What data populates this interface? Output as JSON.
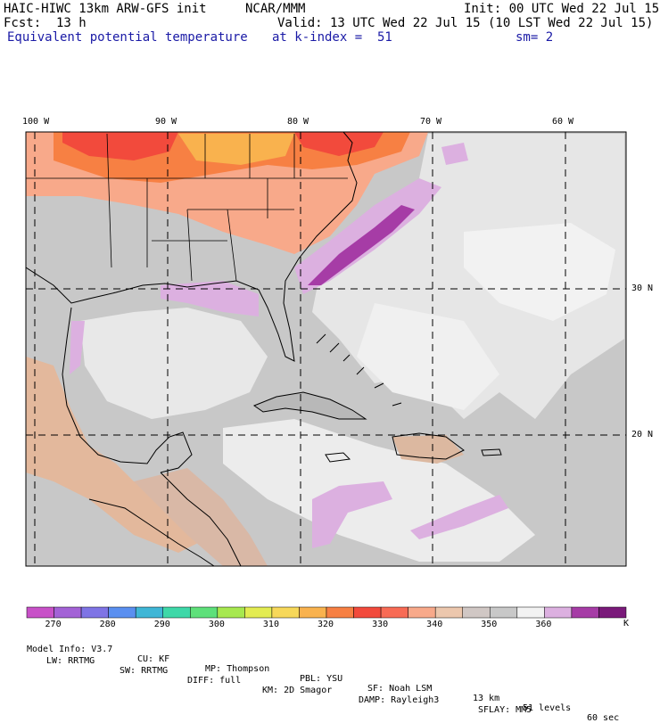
{
  "header": {
    "model_title": "HAIC-HIWC 13km ARW-GFS init",
    "org": "NCAR/MMM",
    "init": "Init: 00 UTC Wed 22 Jul 15",
    "fcst": "Fcst:  13 h",
    "valid": "Valid: 13 UTC Wed 22 Jul 15 (10 LST Wed 22 Jul 15)",
    "field": "Equivalent potential temperature",
    "level": "at k-index =  51",
    "smooth": "sm= 2"
  },
  "lon_labels": [
    "100 W",
    "90 W",
    "80 W",
    "70 W",
    "60 W"
  ],
  "lat_labels": [
    "30 N",
    "20 N"
  ],
  "colorbar": {
    "colors": [
      "#c851c8",
      "#a362d6",
      "#7f74e5",
      "#5a8ff0",
      "#3fb6d6",
      "#3ed8a8",
      "#5ee07a",
      "#a7e84f",
      "#e3ec52",
      "#f7d85a",
      "#f9b24e",
      "#f78043",
      "#f24a3c",
      "#f86b55",
      "#f8a98a",
      "#ecc7ad",
      "#d0c7c4",
      "#c8c8c8",
      "#f2f2f2",
      "#dcb0e0",
      "#a63ca6",
      "#7a1a7a"
    ],
    "labels": [
      "270",
      "280",
      "290",
      "300",
      "310",
      "320",
      "330",
      "340",
      "350",
      "360"
    ],
    "unit": "K"
  },
  "footer": {
    "line1": [
      "Model Info: V3.7",
      "CU: KF",
      "MP: Thompson",
      "PBL: YSU",
      "SF: Noah LSM",
      "13 km",
      "51 levels",
      "60 sec"
    ],
    "line2": [
      "LW: RRTMG",
      "SW: RRTMG",
      "DIFF: full",
      "KM: 2D Smagor",
      "DAMP: Rayleigh3",
      "SFLAY: MM5"
    ]
  }
}
